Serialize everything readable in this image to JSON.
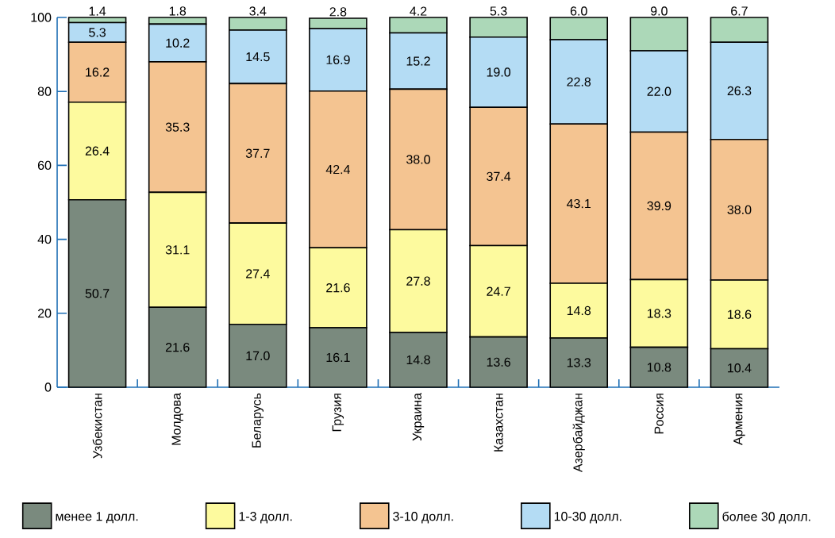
{
  "chart_data": {
    "type": "bar",
    "stacked": true,
    "legend": "bottom",
    "categories": [
      "Узбекистан",
      "Молдова",
      "Беларусь",
      "Грузия",
      "Украина",
      "Казахстан",
      "Азербайджан",
      "Россия",
      "Армения"
    ],
    "ylim": [
      0,
      100
    ],
    "yticks": [
      0,
      20,
      40,
      60,
      80,
      100
    ],
    "series": [
      {
        "name": "менее 1 долл.",
        "color": "#7a8a7e",
        "values": [
          50.7,
          21.6,
          17.0,
          16.1,
          14.8,
          13.6,
          13.3,
          10.8,
          10.4
        ],
        "value_labels": [
          "50.7",
          "21.6",
          "17.0",
          "16.1",
          "14.8",
          "13.6",
          "13.3",
          "10.8",
          "10.4"
        ]
      },
      {
        "name": "1-3 долл.",
        "color": "#fdfa9e",
        "values": [
          26.4,
          31.1,
          27.4,
          21.6,
          27.8,
          24.7,
          14.8,
          18.3,
          18.6
        ],
        "value_labels": [
          "26.4",
          "31.1",
          "27.4",
          "21.6",
          "27.8",
          "24.7",
          "14.8",
          "18.3",
          "18.6"
        ]
      },
      {
        "name": "3-10 долл.",
        "color": "#f4c491",
        "values": [
          16.2,
          35.3,
          37.7,
          42.4,
          38.0,
          37.4,
          43.1,
          39.9,
          38.0
        ],
        "value_labels": [
          "16.2",
          "35.3",
          "37.7",
          "42.4",
          "38.0",
          "37.4",
          "43.1",
          "39.9",
          "38.0"
        ]
      },
      {
        "name": "10-30 долл.",
        "color": "#b4dcf4",
        "values": [
          5.3,
          10.2,
          14.5,
          16.9,
          15.2,
          19.0,
          22.8,
          22.0,
          26.3
        ],
        "value_labels": [
          "5.3",
          "10.2",
          "14.5",
          "16.9",
          "15.2",
          "19.0",
          "22.8",
          "22.0",
          "26.3"
        ]
      },
      {
        "name": "более 30 долл.",
        "color": "#acd8b8",
        "values": [
          1.4,
          1.8,
          3.4,
          2.8,
          4.2,
          5.3,
          6.0,
          9.0,
          6.7
        ],
        "value_labels": [
          "1.4",
          "1.8",
          "3.4",
          "2.8",
          "4.2",
          "5.3",
          "6.0",
          "9.0",
          "6.7"
        ]
      }
    ]
  }
}
